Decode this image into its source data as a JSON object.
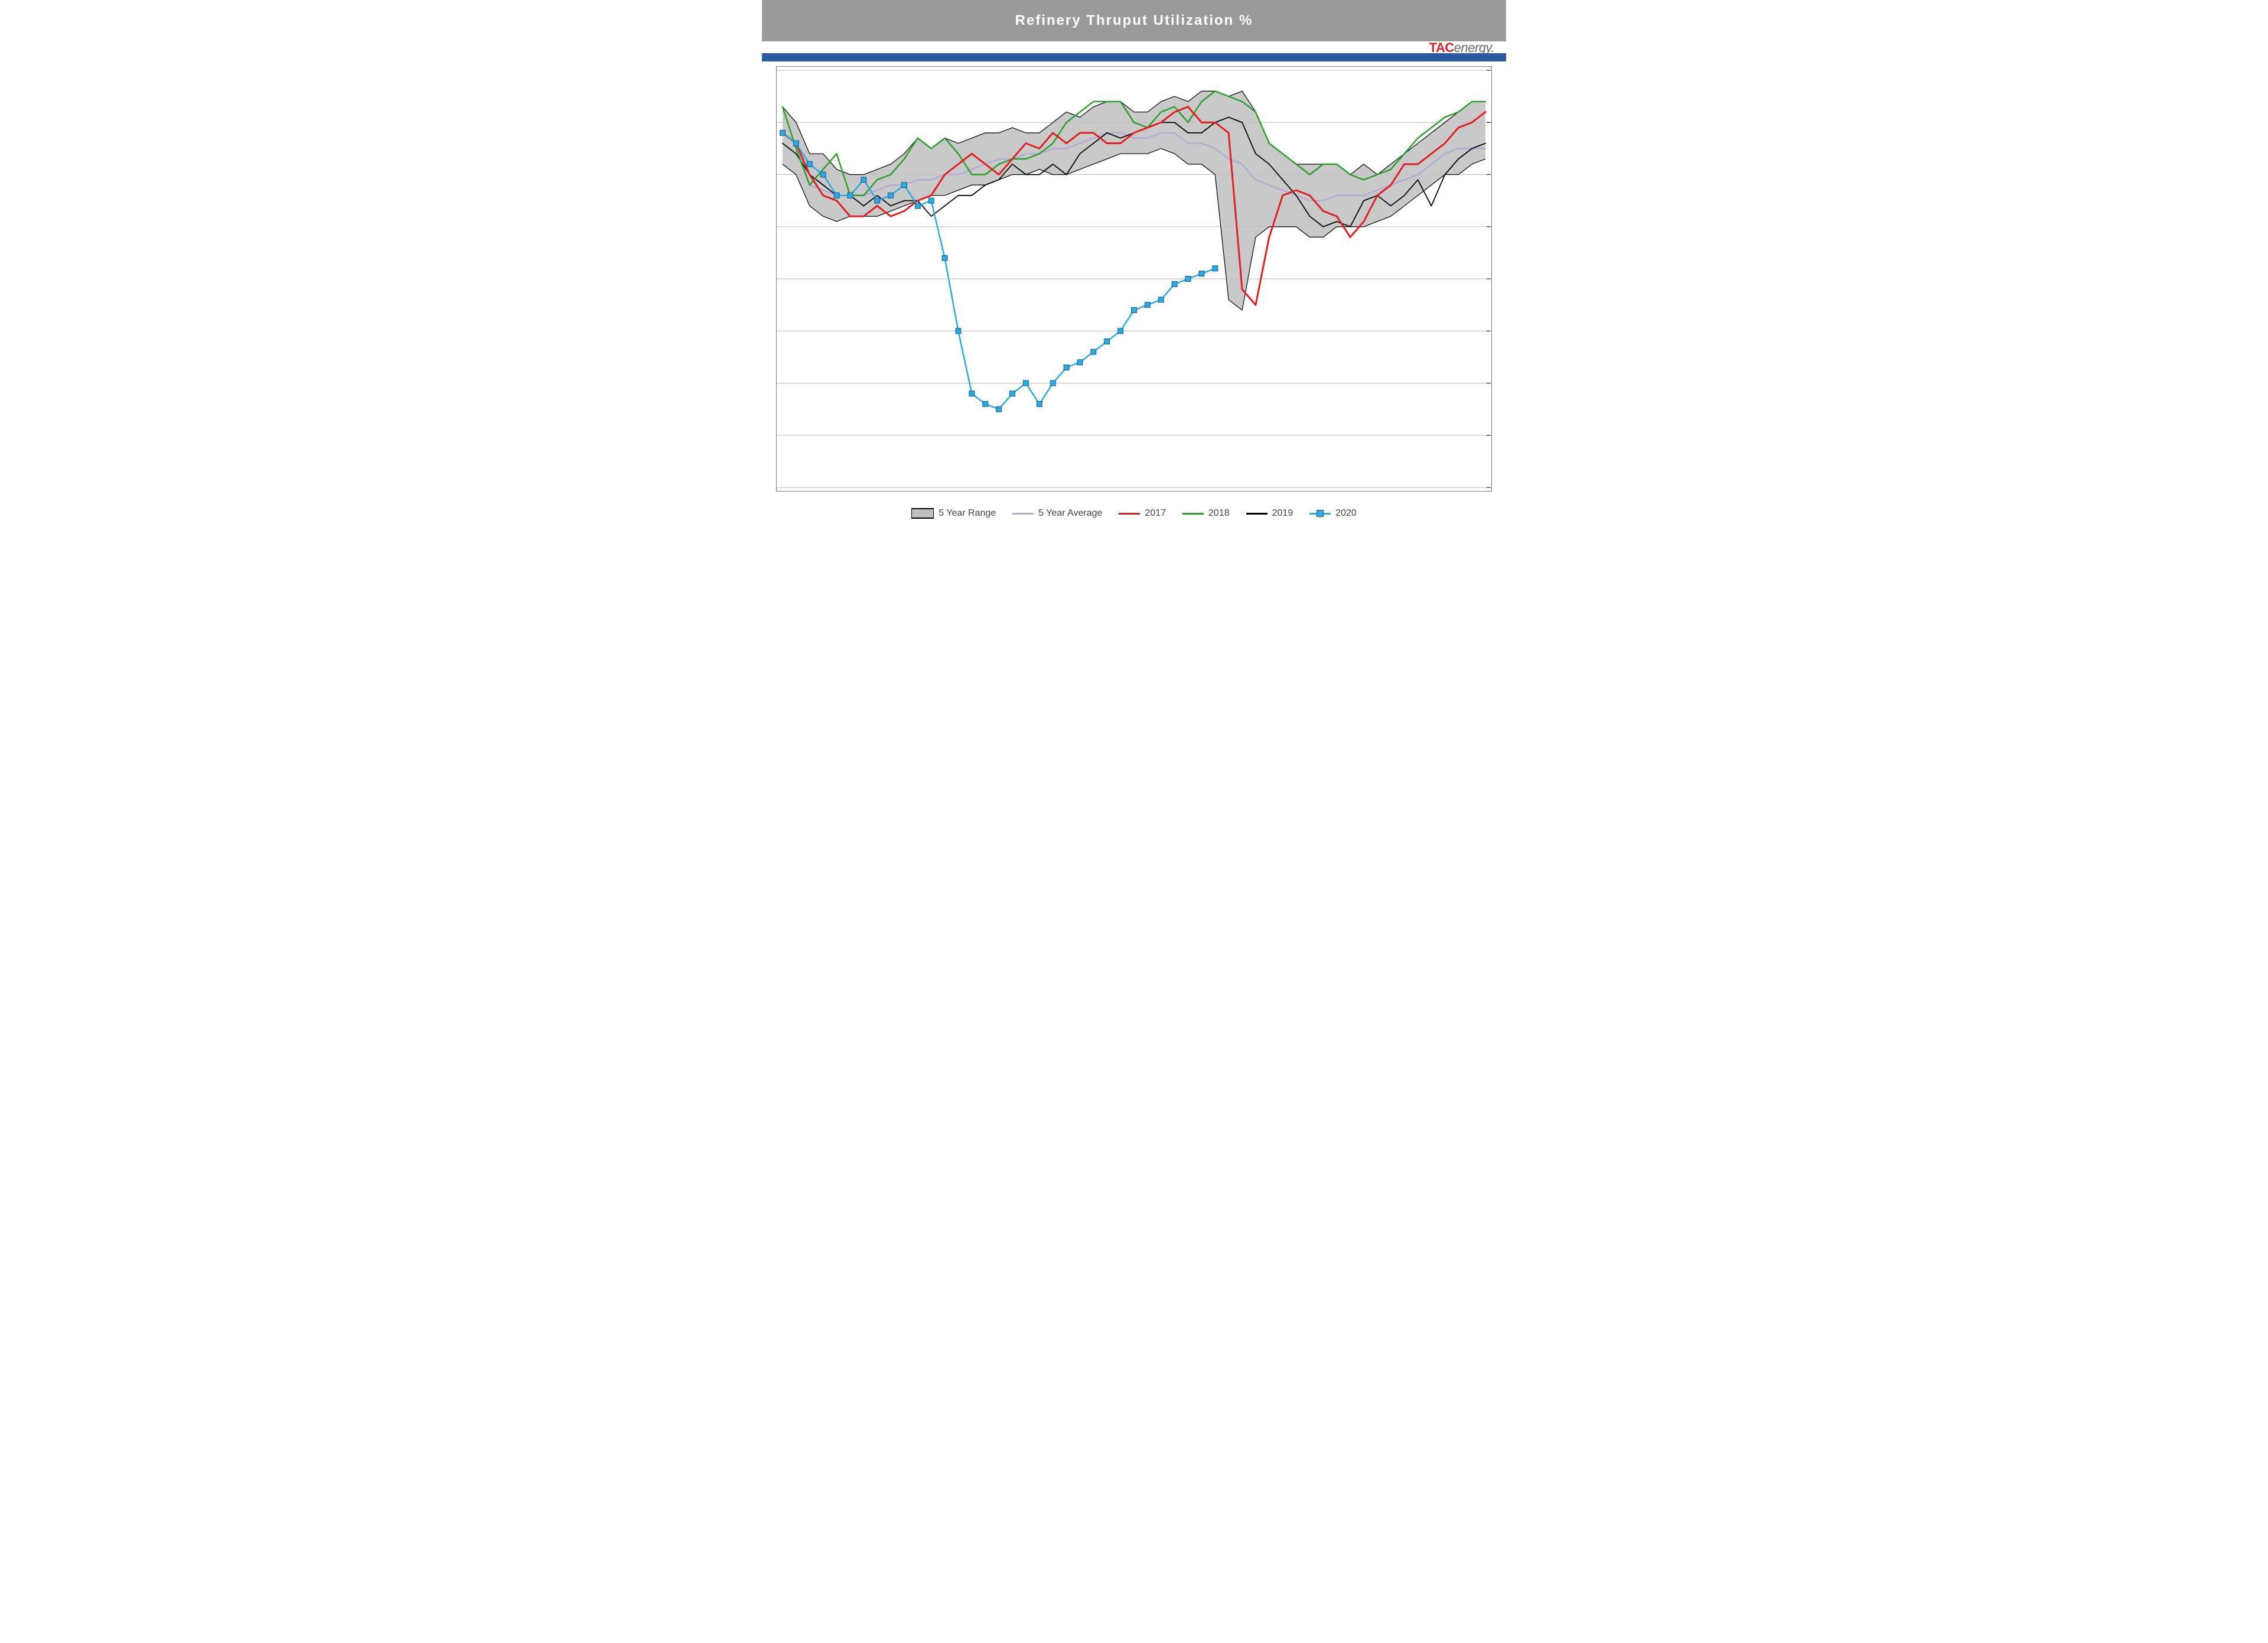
{
  "title": "Refinery Thruput Utilization %",
  "logo": {
    "brand": "TAC",
    "suffix": "energy."
  },
  "colors": {
    "title_bar_bg": "#9a9a9a",
    "title_text": "#ffffff",
    "accent_bar": "#2a5aa0",
    "plot_border": "#7a7a7a",
    "gridline": "#b8b8b8",
    "range_fill": "#bfbfbf",
    "range_outline": "#000000",
    "avg": "#b8a8d8",
    "y2017": "#e02020",
    "y2018": "#2aa02a",
    "y2019": "#000000",
    "y2020_line": "#2aaae0",
    "y2020_marker_fill": "#2aaae0",
    "y2020_marker_stroke": "#1a5a8a",
    "legend_text": "#454545",
    "logo_primary": "#d8232a",
    "logo_secondary": "#6a6a6a"
  },
  "chart": {
    "type": "line-with-band",
    "x_count": 53,
    "ylim": [
      60,
      100
    ],
    "ytick_step": 5,
    "line_width": 2.5,
    "marker_size": 9,
    "title_fontsize": 24,
    "legend_fontsize": 16
  },
  "series": {
    "range_hi": [
      96.5,
      95,
      92,
      92,
      90.5,
      90,
      90,
      90.5,
      91,
      92,
      93.5,
      92.5,
      93.5,
      93,
      93.5,
      94,
      94,
      94.5,
      94,
      94,
      95,
      96,
      95.5,
      96.5,
      97,
      97,
      96,
      96,
      97,
      97.5,
      97,
      98,
      98,
      97.5,
      98,
      96,
      93,
      92,
      91,
      91,
      91,
      91,
      90,
      91,
      90,
      91,
      92,
      93,
      94,
      95,
      96,
      97,
      97
    ],
    "range_lo": [
      91,
      90,
      87,
      86,
      85.5,
      86,
      86,
      86,
      86.5,
      87,
      87.5,
      88,
      88,
      88.5,
      89,
      89,
      89.5,
      90,
      90,
      90.5,
      90,
      90,
      90.5,
      91,
      91.5,
      92,
      92,
      92,
      92.5,
      92,
      91,
      91,
      90,
      78,
      77,
      84,
      85,
      85,
      85,
      84,
      84,
      85,
      85,
      85,
      85.5,
      86,
      87,
      88,
      89,
      90,
      90,
      91,
      91.5
    ],
    "avg": [
      94,
      93,
      89,
      88.5,
      88,
      88,
      88,
      88.5,
      89,
      89,
      89.5,
      89.5,
      90,
      90,
      90.5,
      91,
      91.5,
      91.5,
      92,
      92,
      92.5,
      92.5,
      93,
      93.5,
      94,
      94,
      93.5,
      93.5,
      94,
      94,
      93,
      93,
      92.5,
      91.5,
      91,
      89.5,
      89,
      88.5,
      88,
      87.5,
      87.5,
      88,
      88,
      88,
      88.5,
      89,
      89.5,
      90,
      91,
      92,
      92.5,
      92.5,
      92.5
    ],
    "y2017": [
      94,
      93,
      90,
      88,
      87.5,
      86,
      86,
      87,
      86,
      86.5,
      87.5,
      88,
      90,
      91,
      92,
      91,
      90,
      91.5,
      93,
      92.5,
      94,
      93,
      94,
      94,
      93,
      93,
      94,
      94.5,
      95,
      96,
      96.5,
      95,
      95,
      94,
      79,
      77.5,
      84,
      88,
      88.5,
      88,
      86.5,
      86,
      84,
      85.5,
      88,
      89,
      91,
      91,
      92,
      93,
      94.5,
      95,
      96
    ],
    "y2018": [
      96.5,
      92.5,
      89,
      90.5,
      92,
      88,
      88,
      89.5,
      90,
      91.5,
      93.5,
      92.5,
      93.5,
      92,
      90,
      90,
      91,
      91.5,
      91.5,
      92,
      93,
      95,
      96,
      97,
      97,
      97,
      95,
      94.5,
      96,
      96.5,
      95,
      97,
      98,
      97.5,
      97,
      96,
      93,
      92,
      91,
      90,
      91,
      91,
      90,
      89.5,
      90,
      90.5,
      92,
      93.5,
      94.5,
      95.5,
      96,
      97,
      97
    ],
    "y2019": [
      93,
      92,
      90,
      89,
      88,
      88,
      87,
      88,
      87,
      87.5,
      87.5,
      86,
      87,
      88,
      88,
      89,
      89.5,
      91,
      90,
      90,
      91,
      90,
      92,
      93,
      94,
      93.5,
      94,
      94.5,
      95,
      95,
      94,
      94,
      95,
      95.5,
      95,
      92,
      91,
      89.5,
      88,
      86,
      85,
      85.5,
      85,
      87.5,
      88,
      87,
      88,
      89.5,
      87,
      90,
      91.5,
      92.5,
      93
    ],
    "y2020": [
      94,
      93,
      91,
      90,
      88,
      88,
      89.5,
      87.5,
      88,
      89,
      87,
      87.5,
      82,
      75,
      69,
      68,
      67.5,
      69,
      70,
      68,
      70,
      71.5,
      72,
      73,
      74,
      75,
      77,
      77.5,
      78,
      79.5,
      80,
      80.5,
      81
    ]
  },
  "legend": [
    {
      "label": "5 Year Range",
      "kind": "range"
    },
    {
      "label": "5 Year Average",
      "kind": "line",
      "colorKey": "avg"
    },
    {
      "label": "2017",
      "kind": "line",
      "colorKey": "y2017"
    },
    {
      "label": "2018",
      "kind": "line",
      "colorKey": "y2018"
    },
    {
      "label": "2019",
      "kind": "line",
      "colorKey": "y2019"
    },
    {
      "label": "2020",
      "kind": "marker-line",
      "colorKey": "y2020_line"
    }
  ]
}
